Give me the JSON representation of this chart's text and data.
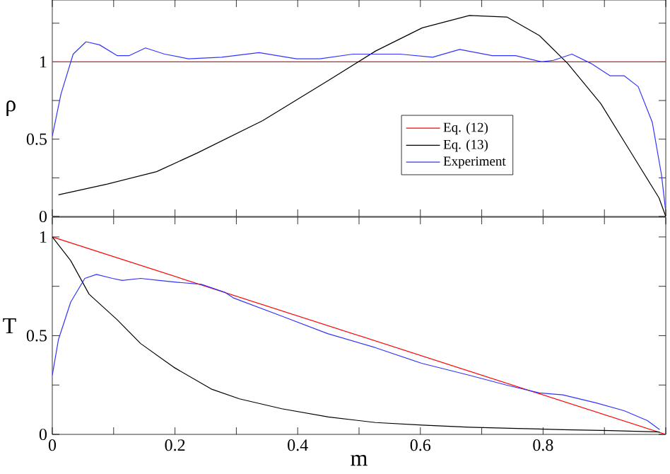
{
  "chart_data": [
    {
      "type": "line",
      "ylabel": "ρ",
      "xlim": [
        0,
        1
      ],
      "ylim": [
        0,
        1.4
      ],
      "xticks": [
        {
          "value": 0,
          "label": null
        },
        {
          "value": 0.1,
          "label": null
        },
        {
          "value": 0.2,
          "label": null
        },
        {
          "value": 0.3,
          "label": null
        },
        {
          "value": 0.4,
          "label": null
        },
        {
          "value": 0.5,
          "label": null
        },
        {
          "value": 0.6,
          "label": null
        },
        {
          "value": 0.7,
          "label": null
        },
        {
          "value": 0.8,
          "label": null
        },
        {
          "value": 0.9,
          "label": null
        },
        {
          "value": 1,
          "label": null
        }
      ],
      "yticks": [
        0,
        {
          "value": 0.25,
          "label": null
        },
        0.5,
        {
          "value": 0.75,
          "label": null
        },
        1,
        {
          "value": 1.25,
          "label": null
        }
      ],
      "tick_labels": "y",
      "legend": "center right",
      "marker": "none",
      "line_style": "solid",
      "series": [
        {
          "name": "Eq. (12)",
          "color": "#ff0000",
          "x": [
            0,
            1
          ],
          "values": [
            1,
            1
          ]
        },
        {
          "name": "Eq. (13)",
          "color": "#000000",
          "x": [
            0.01,
            0.09,
            0.17,
            0.236,
            0.343,
            0.45,
            0.527,
            0.603,
            0.68,
            0.741,
            0.794,
            0.84,
            0.894,
            0.947,
            0.989,
            1.0
          ],
          "values": [
            0.14,
            0.21,
            0.29,
            0.41,
            0.62,
            0.88,
            1.07,
            1.22,
            1.3,
            1.29,
            1.17,
            0.99,
            0.73,
            0.39,
            0.12,
            0
          ]
        },
        {
          "name": "Experiment",
          "color": "#3333ff",
          "x": [
            0,
            0.014,
            0.034,
            0.055,
            0.077,
            0.106,
            0.125,
            0.152,
            0.183,
            0.222,
            0.276,
            0.337,
            0.398,
            0.436,
            0.49,
            0.567,
            0.62,
            0.664,
            0.717,
            0.755,
            0.798,
            0.817,
            0.847,
            0.878,
            0.909,
            0.932,
            0.955,
            0.978,
            0.993,
            1.0
          ],
          "values": [
            0.52,
            0.79,
            1.05,
            1.13,
            1.11,
            1.04,
            1.04,
            1.09,
            1.05,
            1.02,
            1.03,
            1.06,
            1.02,
            1.02,
            1.05,
            1.05,
            1.03,
            1.08,
            1.04,
            1.04,
            1.0,
            1.01,
            1.05,
            0.99,
            0.91,
            0.91,
            0.84,
            0.61,
            0.27,
            0.03
          ]
        }
      ]
    },
    {
      "type": "line",
      "xlabel": "m",
      "ylabel": "T",
      "xlim": [
        0,
        1
      ],
      "ylim": [
        0,
        1.1
      ],
      "xticks": [
        0,
        {
          "value": 0.1,
          "label": null
        },
        0.2,
        {
          "value": 0.3,
          "label": null
        },
        0.4,
        {
          "value": 0.5,
          "label": null
        },
        0.6,
        {
          "value": 0.7,
          "label": null
        },
        0.8,
        {
          "value": 0.9,
          "label": null
        },
        {
          "value": 1,
          "label": null
        }
      ],
      "yticks": [
        0,
        {
          "value": 0.25,
          "label": null
        },
        0.5,
        {
          "value": 0.75,
          "label": null
        },
        1
      ],
      "marker": "none",
      "line_style": "solid",
      "series": [
        {
          "color": "#ff0000",
          "x": [
            0,
            1
          ],
          "values": [
            1,
            0
          ]
        },
        {
          "color": "#000000",
          "x": [
            0,
            0.03,
            0.06,
            0.106,
            0.144,
            0.198,
            0.259,
            0.305,
            0.374,
            0.45,
            0.527,
            0.603,
            0.68,
            0.757,
            0.833,
            0.909,
            0.99
          ],
          "values": [
            1.0,
            0.88,
            0.71,
            0.58,
            0.46,
            0.34,
            0.23,
            0.18,
            0.13,
            0.088,
            0.06,
            0.047,
            0.036,
            0.03,
            0.024,
            0.019,
            0.012
          ]
        },
        {
          "color": "#3333ff",
          "x": [
            0,
            0.01,
            0.03,
            0.053,
            0.072,
            0.098,
            0.114,
            0.144,
            0.174,
            0.205,
            0.243,
            0.281,
            0.296,
            0.373,
            0.449,
            0.526,
            0.602,
            0.679,
            0.74,
            0.794,
            0.832,
            0.886,
            0.932,
            0.97,
            0.99
          ],
          "values": [
            0.3,
            0.48,
            0.67,
            0.79,
            0.81,
            0.79,
            0.78,
            0.79,
            0.78,
            0.77,
            0.76,
            0.72,
            0.69,
            0.6,
            0.51,
            0.44,
            0.36,
            0.3,
            0.25,
            0.21,
            0.2,
            0.16,
            0.12,
            0.07,
            0.024
          ]
        }
      ]
    }
  ]
}
